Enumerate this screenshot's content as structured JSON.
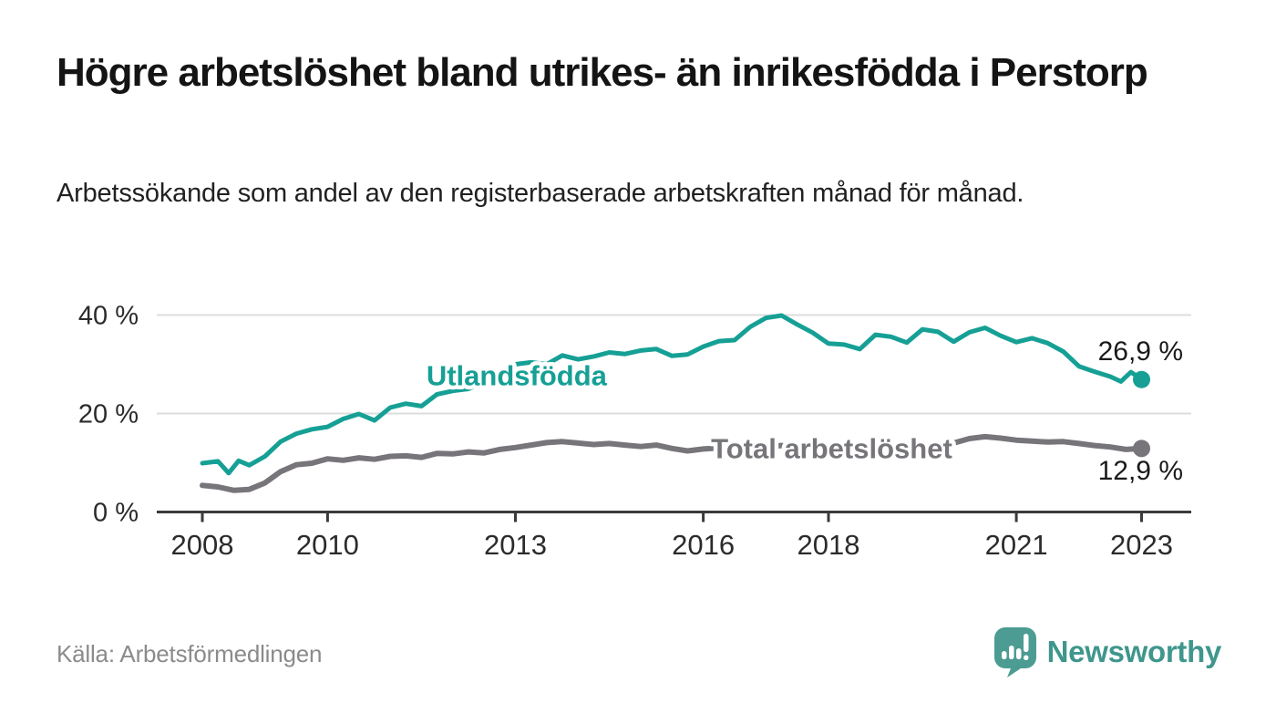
{
  "header": {
    "title": "Högre arbetslöshet bland utrikes- än inrikesfödda i Perstorp",
    "subtitle": "Arbetssökande som andel av den registerbaserade arbetskraften månad för månad."
  },
  "footer": {
    "source": "Källa: Arbetsförmedlingen",
    "brand": "Newsworthy"
  },
  "colors": {
    "foreign_born_line": "#16a095",
    "total_line": "#77747a",
    "axis": "#3a3a3a",
    "grid": "#dcdcdc",
    "tick_label": "#2b2b2b",
    "end_label": "#1a1a1a",
    "source_text": "#8b8b8b",
    "brand_text": "#3f968d",
    "brand_mark": "#4c9c93"
  },
  "chart_data": {
    "type": "line",
    "x_unit": "decimal_year",
    "x_range": [
      2007.27,
      2023.79
    ],
    "ylim": [
      0,
      42
    ],
    "grid": "horizontal-only",
    "legend_position": "inline-labels",
    "x_ticks": [
      {
        "v": 2008,
        "label": "2008"
      },
      {
        "v": 2010,
        "label": "2010"
      },
      {
        "v": 2013,
        "label": "2013"
      },
      {
        "v": 2016,
        "label": "2016"
      },
      {
        "v": 2018,
        "label": "2018"
      },
      {
        "v": 2021,
        "label": "2021"
      },
      {
        "v": 2023,
        "label": "2023"
      }
    ],
    "y_ticks": [
      {
        "v": 0,
        "label": "0 %"
      },
      {
        "v": 20,
        "label": "20 %"
      },
      {
        "v": 40,
        "label": "40 %"
      }
    ],
    "series": [
      {
        "name": "Utlandsfödda",
        "color": "#16a095",
        "label_at": [
          2013.02,
          27.7
        ],
        "end_value": 26.9,
        "end_label": "26,9 %",
        "points": [
          [
            2008.0,
            9.9
          ],
          [
            2008.25,
            10.3
          ],
          [
            2008.42,
            7.9
          ],
          [
            2008.58,
            10.4
          ],
          [
            2008.75,
            9.5
          ],
          [
            2009.0,
            11.3
          ],
          [
            2009.25,
            14.3
          ],
          [
            2009.5,
            15.9
          ],
          [
            2009.75,
            16.8
          ],
          [
            2010.0,
            17.3
          ],
          [
            2010.25,
            18.9
          ],
          [
            2010.5,
            19.9
          ],
          [
            2010.75,
            18.6
          ],
          [
            2011.0,
            21.2
          ],
          [
            2011.25,
            22.0
          ],
          [
            2011.5,
            21.5
          ],
          [
            2011.75,
            23.9
          ],
          [
            2012.0,
            24.6
          ],
          [
            2012.25,
            25.0
          ],
          [
            2012.5,
            26.4
          ],
          [
            2012.75,
            28.4
          ],
          [
            2013.0,
            30.0
          ],
          [
            2013.25,
            30.4
          ],
          [
            2013.5,
            30.0
          ],
          [
            2013.75,
            31.8
          ],
          [
            2014.0,
            31.0
          ],
          [
            2014.25,
            31.6
          ],
          [
            2014.5,
            32.4
          ],
          [
            2014.75,
            32.1
          ],
          [
            2015.0,
            32.8
          ],
          [
            2015.25,
            33.1
          ],
          [
            2015.5,
            31.7
          ],
          [
            2015.75,
            32.0
          ],
          [
            2016.0,
            33.6
          ],
          [
            2016.25,
            34.7
          ],
          [
            2016.5,
            34.9
          ],
          [
            2016.75,
            37.6
          ],
          [
            2017.0,
            39.4
          ],
          [
            2017.25,
            39.9
          ],
          [
            2017.5,
            38.1
          ],
          [
            2017.75,
            36.4
          ],
          [
            2018.0,
            34.2
          ],
          [
            2018.25,
            34.0
          ],
          [
            2018.5,
            33.1
          ],
          [
            2018.75,
            36.0
          ],
          [
            2019.0,
            35.6
          ],
          [
            2019.25,
            34.4
          ],
          [
            2019.5,
            37.1
          ],
          [
            2019.75,
            36.6
          ],
          [
            2020.0,
            34.6
          ],
          [
            2020.25,
            36.5
          ],
          [
            2020.5,
            37.4
          ],
          [
            2020.75,
            35.8
          ],
          [
            2021.0,
            34.5
          ],
          [
            2021.25,
            35.3
          ],
          [
            2021.5,
            34.3
          ],
          [
            2021.75,
            32.6
          ],
          [
            2022.0,
            29.6
          ],
          [
            2022.25,
            28.5
          ],
          [
            2022.5,
            27.5
          ],
          [
            2022.67,
            26.5
          ],
          [
            2022.83,
            28.4
          ],
          [
            2023.0,
            26.9
          ]
        ]
      },
      {
        "name": "Total arbetslöshet",
        "color": "#77747a",
        "label_at": [
          2018.05,
          12.9
        ],
        "end_value": 12.9,
        "end_label": "12,9 %",
        "points": [
          [
            2008.0,
            5.4
          ],
          [
            2008.25,
            5.1
          ],
          [
            2008.5,
            4.4
          ],
          [
            2008.75,
            4.6
          ],
          [
            2009.0,
            5.9
          ],
          [
            2009.25,
            8.2
          ],
          [
            2009.5,
            9.6
          ],
          [
            2009.75,
            9.9
          ],
          [
            2010.0,
            10.8
          ],
          [
            2010.25,
            10.5
          ],
          [
            2010.5,
            11.0
          ],
          [
            2010.75,
            10.7
          ],
          [
            2011.0,
            11.3
          ],
          [
            2011.25,
            11.4
          ],
          [
            2011.5,
            11.1
          ],
          [
            2011.75,
            11.9
          ],
          [
            2012.0,
            11.8
          ],
          [
            2012.25,
            12.2
          ],
          [
            2012.5,
            12.0
          ],
          [
            2012.75,
            12.7
          ],
          [
            2013.0,
            13.1
          ],
          [
            2013.25,
            13.6
          ],
          [
            2013.5,
            14.1
          ],
          [
            2013.75,
            14.3
          ],
          [
            2014.0,
            14.0
          ],
          [
            2014.25,
            13.7
          ],
          [
            2014.5,
            13.9
          ],
          [
            2014.75,
            13.6
          ],
          [
            2015.0,
            13.3
          ],
          [
            2015.25,
            13.6
          ],
          [
            2015.5,
            12.9
          ],
          [
            2015.75,
            12.4
          ],
          [
            2016.0,
            12.8
          ],
          [
            2016.25,
            13.0
          ],
          [
            2016.5,
            13.2
          ],
          [
            2016.75,
            13.1
          ],
          [
            2017.0,
            13.3
          ],
          [
            2017.25,
            13.5
          ],
          [
            2017.5,
            13.2
          ],
          [
            2017.75,
            13.4
          ],
          [
            2018.0,
            13.6
          ],
          [
            2018.25,
            13.4
          ],
          [
            2018.5,
            13.2
          ],
          [
            2018.75,
            13.4
          ],
          [
            2019.0,
            13.3
          ],
          [
            2019.25,
            13.5
          ],
          [
            2019.5,
            13.6
          ],
          [
            2019.75,
            13.7
          ],
          [
            2020.0,
            14.0
          ],
          [
            2020.25,
            14.9
          ],
          [
            2020.5,
            15.3
          ],
          [
            2020.75,
            15.0
          ],
          [
            2021.0,
            14.6
          ],
          [
            2021.25,
            14.4
          ],
          [
            2021.5,
            14.2
          ],
          [
            2021.75,
            14.3
          ],
          [
            2022.0,
            13.9
          ],
          [
            2022.25,
            13.5
          ],
          [
            2022.5,
            13.2
          ],
          [
            2022.75,
            12.7
          ],
          [
            2023.0,
            12.9
          ]
        ]
      }
    ]
  }
}
